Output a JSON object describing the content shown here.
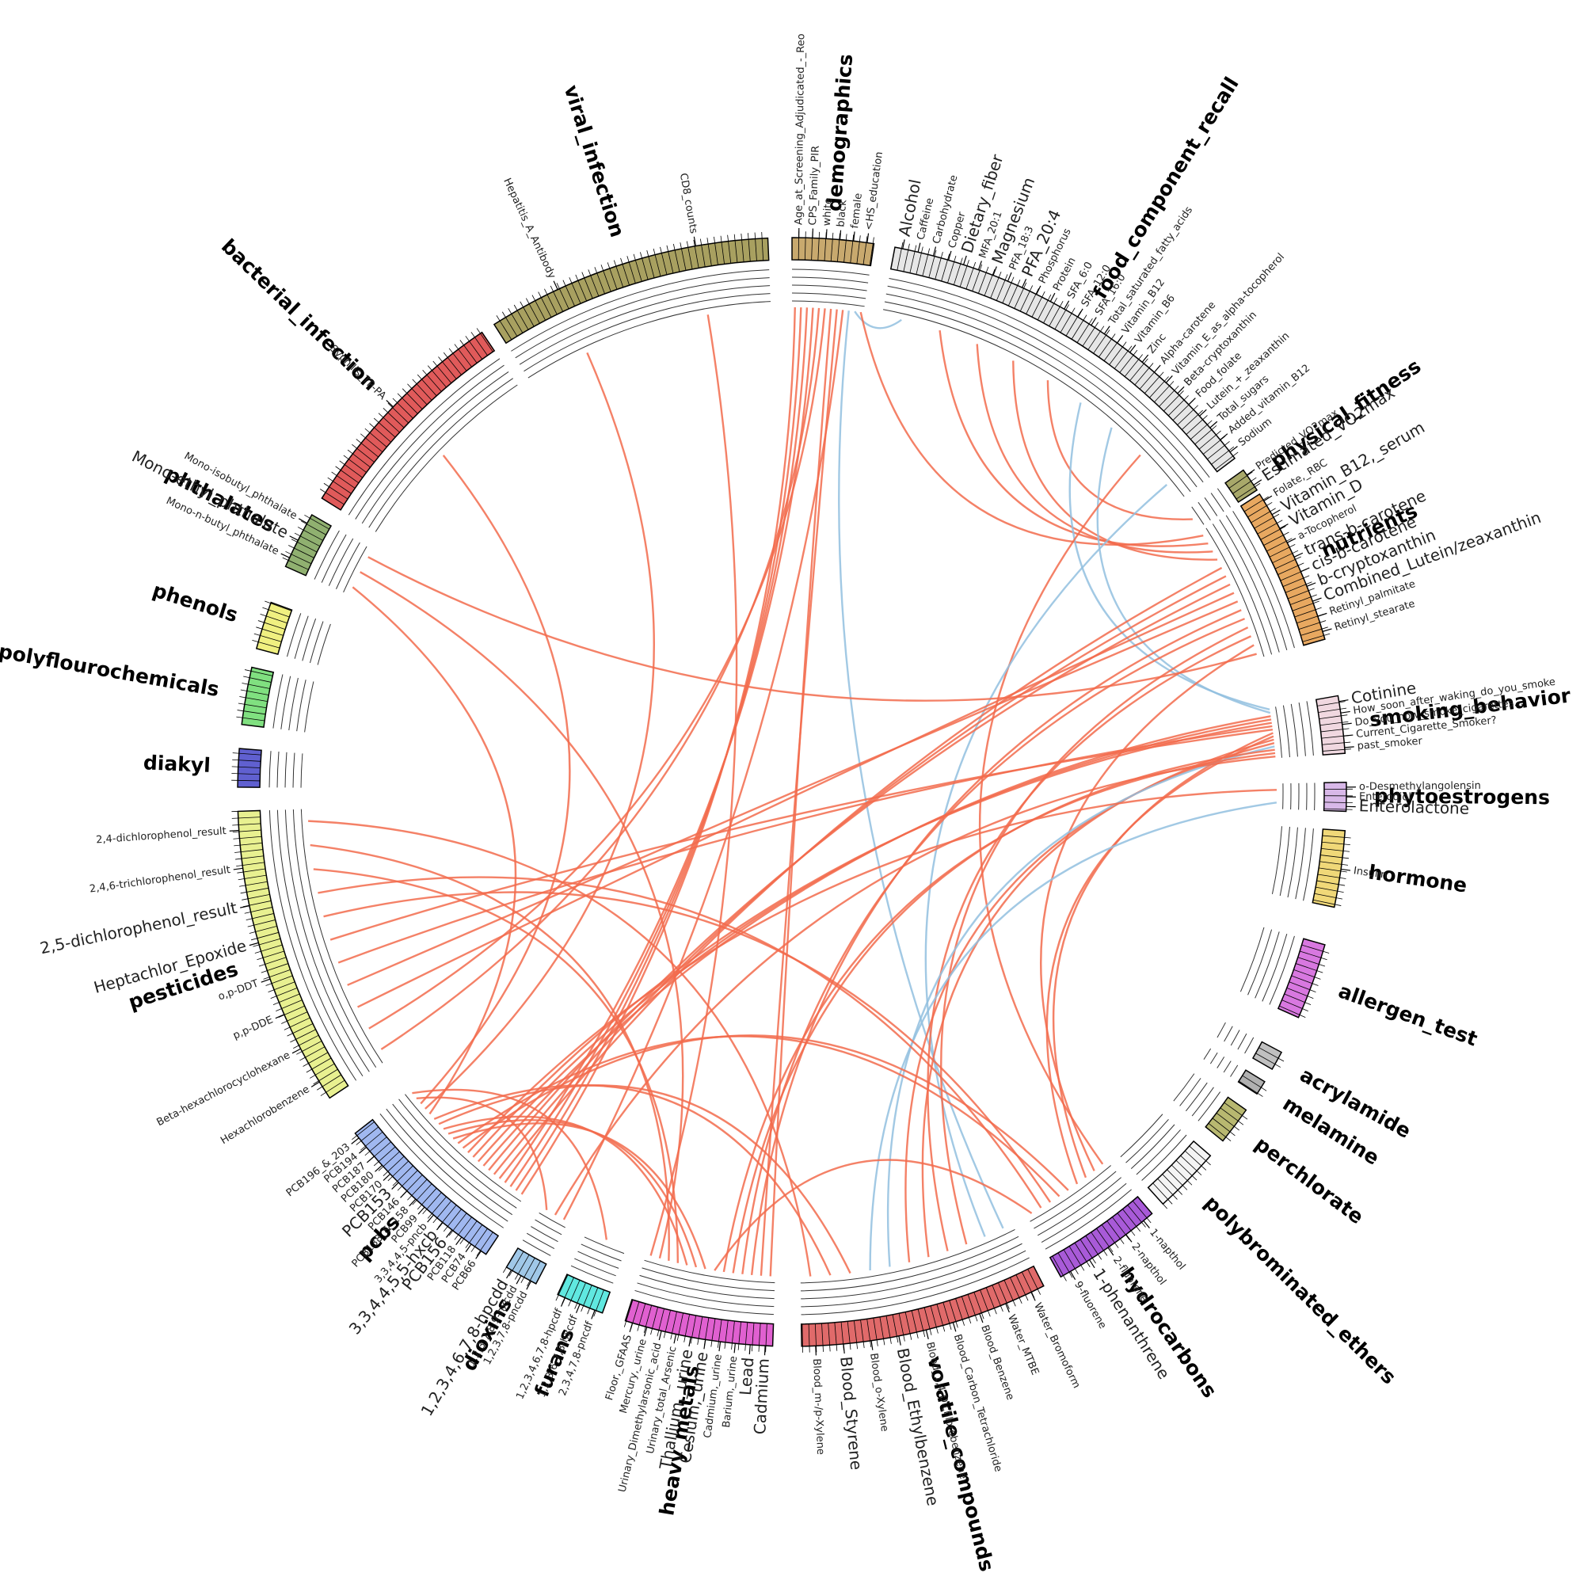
{
  "chart_data": {
    "type": "chord",
    "sectors": [
      {
        "name": "demographics",
        "color": "#c8a96e",
        "variables": [
          {
            "label": "Age_at_Screening_Adjudicated_-_Reo"
          },
          {
            "label": "CPS_Family_PIR"
          },
          {
            "label": "white"
          },
          {
            "label": "black"
          },
          {
            "label": "female"
          },
          {
            "label": "<HS_education"
          }
        ]
      },
      {
        "name": "food_component_recall",
        "color": "#e6e6e6",
        "variables": [
          {
            "label": "Alcohol",
            "color": "#6baed6"
          },
          {
            "label": "Caffeine"
          },
          {
            "label": "Carbohydrate"
          },
          {
            "label": "Copper"
          },
          {
            "label": "Dietary_fiber",
            "color": "#6baed6"
          },
          {
            "label": "MFA_20:1"
          },
          {
            "label": "Magnesium",
            "color": "#6baed6"
          },
          {
            "label": "PFA_18:3"
          },
          {
            "label": "PFA_20:4",
            "color": "#f26b4c"
          },
          {
            "label": "Phosphorus"
          },
          {
            "label": "Protein"
          },
          {
            "label": "SFA_6:0"
          },
          {
            "label": "SFA_12:0"
          },
          {
            "label": "SFA_16:0"
          },
          {
            "label": "Total_saturated_fatty_acids"
          },
          {
            "label": "Vitamin_B12"
          },
          {
            "label": "Vitamin_B6"
          },
          {
            "label": "Zinc"
          },
          {
            "label": "Alpha-carotene"
          },
          {
            "label": "Vitamin_E_as_alpha-tocopherol"
          },
          {
            "label": "Beta-cryptoxanthin"
          },
          {
            "label": "Food_folate"
          },
          {
            "label": "Lutein_+_zeaxanthin"
          },
          {
            "label": "Total_sugars"
          },
          {
            "label": "Added_vitamin_B12"
          },
          {
            "label": "Sodium"
          }
        ]
      },
      {
        "name": "physical_fitness",
        "color": "#a8a86a",
        "variables": [
          {
            "label": "Predicted_VO2max"
          },
          {
            "label": "Estimated_VO2max",
            "color": "#6baed6"
          }
        ]
      },
      {
        "name": "nutrients",
        "color": "#e8a860",
        "variables": [
          {
            "label": "Folate,_RBC"
          },
          {
            "label": "Vitamin_B12,_serum",
            "color": "#6baed6"
          },
          {
            "label": "Vitamin_D",
            "color": "#6baed6"
          },
          {
            "label": "a-Tocopherol"
          },
          {
            "label": "trans-b-carotene",
            "color": "#6baed6"
          },
          {
            "label": "cis-b-carotene",
            "color": "#6baed6"
          },
          {
            "label": "b-cryptoxanthin",
            "color": "#6baed6"
          },
          {
            "label": "Combined_Lutein/zeaxanthin",
            "color": "#6baed6"
          },
          {
            "label": "Retinyl_palmitate"
          },
          {
            "label": "Retinyl_stearate"
          }
        ]
      },
      {
        "name": "smoking_behavior",
        "color": "#f0d8e0",
        "variables": [
          {
            "label": "Cotinine",
            "color": "#6baed6"
          },
          {
            "label": "How_soon_after_waking_do_you_smoke"
          },
          {
            "label": "Do_you_now_smoke_cigarettes..."
          },
          {
            "label": "Current_Cigarette_Smoker?"
          },
          {
            "label": "past_smoker"
          }
        ]
      },
      {
        "name": "phytoestrogens",
        "color": "#d8b8e8",
        "variables": [
          {
            "label": "o-Desmethylangolensin"
          },
          {
            "label": "Enterodiol"
          },
          {
            "label": "Enterolactone",
            "color": "#6baed6"
          }
        ]
      },
      {
        "name": "hormone",
        "color": "#f0d878",
        "variables": [
          {
            "label": "Insulin"
          }
        ]
      },
      {
        "name": "allergen_test",
        "color": "#d878e0",
        "variables": []
      },
      {
        "name": "acrylamide",
        "color": "#c0c0c0",
        "variables": []
      },
      {
        "name": "melamine",
        "color": "#b0b0b0",
        "variables": []
      },
      {
        "name": "perchlorate",
        "color": "#b8b870",
        "variables": []
      },
      {
        "name": "polybrominated_ethers",
        "color": "#f4f4f4",
        "variables": []
      },
      {
        "name": "hydrocarbons",
        "color": "#a85ad8",
        "variables": [
          {
            "label": "1-napthol"
          },
          {
            "label": "2-napthol"
          },
          {
            "label": "2-fluorene"
          },
          {
            "label": "1-phenanthrene",
            "color": "#f26b4c"
          },
          {
            "label": "9-fluorene"
          }
        ]
      },
      {
        "name": "volatile_compounds",
        "color": "#e06a6a",
        "variables": [
          {
            "label": "Water_Bromoform"
          },
          {
            "label": "Water_MTBE"
          },
          {
            "label": "Blood_Benzene"
          },
          {
            "label": "Blood_Carbon_Tetrachloride"
          },
          {
            "label": "Blood_1,4-Dichlorobenzene"
          },
          {
            "label": "Blood_Ethylbenzene",
            "color": "#6baed6"
          },
          {
            "label": "Blood_o-Xylene"
          },
          {
            "label": "Blood_Styrene",
            "color": "#6baed6"
          },
          {
            "label": "Blood_m-/p-Xylene"
          }
        ]
      },
      {
        "name": "heavy_metals",
        "color": "#e060d0",
        "variables": [
          {
            "label": "Cadmium",
            "color": "#6baed6"
          },
          {
            "label": "Lead",
            "color": "#6baed6"
          },
          {
            "label": "Barium,_urine"
          },
          {
            "label": "Cadmium,_urine"
          },
          {
            "label": "Cesium,_urine",
            "color": "#f26b4c"
          },
          {
            "label": "Thallium,_urine",
            "color": "#f26b4c"
          },
          {
            "label": "Urinary_total_Arsenic"
          },
          {
            "label": "Urinary_Dimethylarsonic_acid"
          },
          {
            "label": "Mercury,_urine"
          },
          {
            "label": "Floor,_GFAAS"
          }
        ]
      },
      {
        "name": "furans",
        "color": "#60e8e0",
        "variables": [
          {
            "label": "2,3,4,7,8-pncdf"
          },
          {
            "label": "1,2,3,6,7,8-hxcdf"
          },
          {
            "label": "1,2,3,4,6,7,8-hpcdf"
          }
        ]
      },
      {
        "name": "dioxins",
        "color": "#a0c8e8",
        "variables": [
          {
            "label": "1,2,3,7,8-pncdd"
          },
          {
            "label": "1,2,3,7,8,9-hxcdd"
          },
          {
            "label": "1,2,3,4,6,7,8-hpcdd",
            "color": "#f26b4c"
          }
        ]
      },
      {
        "name": "pcbs",
        "color": "#a0b8f0",
        "variables": [
          {
            "label": "PCB66"
          },
          {
            "label": "PCB74"
          },
          {
            "label": "PCB118"
          },
          {
            "label": "PCB156",
            "color": "#6baed6"
          },
          {
            "label": "3,3,4,4,5,5-hxcb",
            "color": "#6baed6"
          },
          {
            "label": "3,3,4,4,5-pncb"
          },
          {
            "label": "PCB99"
          },
          {
            "label": "PCB138_&_158"
          },
          {
            "label": "PCB146"
          },
          {
            "label": "PCB153",
            "color": "#6baed6"
          },
          {
            "label": "PCB170"
          },
          {
            "label": "PCB180"
          },
          {
            "label": "PCB187"
          },
          {
            "label": "PCB194"
          },
          {
            "label": "PCB196_&_203"
          }
        ]
      },
      {
        "name": "pesticides",
        "color": "#e8f090",
        "variables": [
          {
            "label": "Hexachlorobenzene"
          },
          {
            "label": "Beta-hexachlorocyclohexane"
          },
          {
            "label": "p,p-DDE"
          },
          {
            "label": "o,p-DDT"
          },
          {
            "label": "Heptachlor_Epoxide",
            "color": "#f26b4c"
          },
          {
            "label": "2,5-dichlorophenol_result",
            "color": "#f26b4c"
          },
          {
            "label": "2,4,6-trichlorophenol_result"
          },
          {
            "label": "2,4-dichlorophenol_result"
          }
        ]
      },
      {
        "name": "diakyl",
        "color": "#6060d0",
        "variables": []
      },
      {
        "name": "polyflourochemicals",
        "color": "#80e080",
        "variables": []
      },
      {
        "name": "phenols",
        "color": "#f0f080",
        "variables": []
      },
      {
        "name": "phthalates",
        "color": "#90b070",
        "variables": [
          {
            "label": "Mono-n-butyl_phthalate"
          },
          {
            "label": "Mono-ethyl_phthalate",
            "color": "#f26b4c"
          },
          {
            "label": "Mono-isobutyl_phthalate"
          }
        ]
      },
      {
        "name": "bacterial_infection",
        "color": "#e05a5a",
        "variables": [
          {
            "label": "Syphilis_TP-PA"
          }
        ]
      },
      {
        "name": "viral_infection",
        "color": "#a8a060",
        "variables": [
          {
            "label": "Hepatitis_A_Antibody"
          },
          {
            "label": "CD8_counts"
          }
        ]
      }
    ],
    "links": [
      {
        "from": "demographics",
        "to": "pcbs",
        "color": "#f26b4c"
      },
      {
        "from": "demographics",
        "to": "pcbs",
        "color": "#f26b4c"
      },
      {
        "from": "demographics",
        "to": "pcbs",
        "color": "#f26b4c"
      },
      {
        "from": "demographics",
        "to": "pcbs",
        "color": "#f26b4c"
      },
      {
        "from": "demographics",
        "to": "pesticides",
        "color": "#f26b4c"
      },
      {
        "from": "demographics",
        "to": "pesticides",
        "color": "#f26b4c"
      },
      {
        "from": "demographics",
        "to": "heavy_metals",
        "color": "#f26b4c"
      },
      {
        "from": "demographics",
        "to": "heavy_metals",
        "color": "#f26b4c"
      },
      {
        "from": "demographics",
        "to": "dioxins",
        "color": "#f26b4c"
      },
      {
        "from": "demographics",
        "to": "volatile_compounds",
        "color": "#92c0df"
      },
      {
        "from": "demographics",
        "to": "food_component_recall",
        "color": "#92c0df"
      },
      {
        "from": "demographics",
        "to": "nutrients",
        "color": "#f26b4c"
      },
      {
        "from": "food_component_recall",
        "to": "nutrients",
        "color": "#f26b4c"
      },
      {
        "from": "food_component_recall",
        "to": "nutrients",
        "color": "#f26b4c"
      },
      {
        "from": "food_component_recall",
        "to": "nutrients",
        "color": "#f26b4c"
      },
      {
        "from": "food_component_recall",
        "to": "physical_fitness",
        "color": "#f26b4c"
      },
      {
        "from": "food_component_recall",
        "to": "smoking_behavior",
        "color": "#92c0df"
      },
      {
        "from": "food_component_recall",
        "to": "smoking_behavior",
        "color": "#92c0df"
      },
      {
        "from": "food_component_recall",
        "to": "hydrocarbons",
        "color": "#f26b4c"
      },
      {
        "from": "food_component_recall",
        "to": "volatile_compounds",
        "color": "#92c0df"
      },
      {
        "from": "nutrients",
        "to": "pcbs",
        "color": "#f26b4c"
      },
      {
        "from": "nutrients",
        "to": "pcbs",
        "color": "#f26b4c"
      },
      {
        "from": "nutrients",
        "to": "pcbs",
        "color": "#f26b4c"
      },
      {
        "from": "nutrients",
        "to": "pesticides",
        "color": "#f26b4c"
      },
      {
        "from": "nutrients",
        "to": "pesticides",
        "color": "#f26b4c"
      },
      {
        "from": "nutrients",
        "to": "heavy_metals",
        "color": "#f26b4c"
      },
      {
        "from": "nutrients",
        "to": "heavy_metals",
        "color": "#f26b4c"
      },
      {
        "from": "nutrients",
        "to": "volatile_compounds",
        "color": "#f26b4c"
      },
      {
        "from": "nutrients",
        "to": "volatile_compounds",
        "color": "#f26b4c"
      },
      {
        "from": "nutrients",
        "to": "hydrocarbons",
        "color": "#f26b4c"
      },
      {
        "from": "smoking_behavior",
        "to": "pcbs",
        "color": "#f26b4c"
      },
      {
        "from": "smoking_behavior",
        "to": "pcbs",
        "color": "#f26b4c"
      },
      {
        "from": "smoking_behavior",
        "to": "pcbs",
        "color": "#f26b4c"
      },
      {
        "from": "smoking_behavior",
        "to": "pesticides",
        "color": "#f26b4c"
      },
      {
        "from": "smoking_behavior",
        "to": "pesticides",
        "color": "#f26b4c"
      },
      {
        "from": "smoking_behavior",
        "to": "hydrocarbons",
        "color": "#f26b4c"
      },
      {
        "from": "smoking_behavior",
        "to": "hydrocarbons",
        "color": "#f26b4c"
      },
      {
        "from": "smoking_behavior",
        "to": "volatile_compounds",
        "color": "#f26b4c"
      },
      {
        "from": "smoking_behavior",
        "to": "volatile_compounds",
        "color": "#f26b4c"
      },
      {
        "from": "smoking_behavior",
        "to": "volatile_compounds",
        "color": "#92c0df"
      },
      {
        "from": "smoking_behavior",
        "to": "heavy_metals",
        "color": "#f26b4c"
      },
      {
        "from": "smoking_behavior",
        "to": "heavy_metals",
        "color": "#f26b4c"
      },
      {
        "from": "smoking_behavior",
        "to": "dioxins",
        "color": "#f26b4c"
      },
      {
        "from": "phytoestrogens",
        "to": "pcbs",
        "color": "#f26b4c"
      },
      {
        "from": "phytoestrogens",
        "to": "volatile_compounds",
        "color": "#92c0df"
      },
      {
        "from": "hydrocarbons",
        "to": "pcbs",
        "color": "#f26b4c"
      },
      {
        "from": "hydrocarbons",
        "to": "pcbs",
        "color": "#f26b4c"
      },
      {
        "from": "hydrocarbons",
        "to": "pesticides",
        "color": "#f26b4c"
      },
      {
        "from": "hydrocarbons",
        "to": "pesticides",
        "color": "#f26b4c"
      },
      {
        "from": "hydrocarbons",
        "to": "heavy_metals",
        "color": "#f26b4c"
      },
      {
        "from": "heavy_metals",
        "to": "pcbs",
        "color": "#f26b4c"
      },
      {
        "from": "heavy_metals",
        "to": "pcbs",
        "color": "#f26b4c"
      },
      {
        "from": "heavy_metals",
        "to": "pcbs",
        "color": "#f26b4c"
      },
      {
        "from": "heavy_metals",
        "to": "pesticides",
        "color": "#f26b4c"
      },
      {
        "from": "heavy_metals",
        "to": "pesticides",
        "color": "#f26b4c"
      },
      {
        "from": "volatile_compounds",
        "to": "pcbs",
        "color": "#f26b4c"
      },
      {
        "from": "volatile_compounds",
        "to": "pcbs",
        "color": "#f26b4c"
      },
      {
        "from": "volatile_compounds",
        "to": "pesticides",
        "color": "#f26b4c"
      },
      {
        "from": "phthalates",
        "to": "pcbs",
        "color": "#f26b4c"
      },
      {
        "from": "phthalates",
        "to": "heavy_metals",
        "color": "#f26b4c"
      },
      {
        "from": "phthalates",
        "to": "nutrients",
        "color": "#f26b4c"
      },
      {
        "from": "viral_infection",
        "to": "pcbs",
        "color": "#f26b4c"
      },
      {
        "from": "viral_infection",
        "to": "heavy_metals",
        "color": "#f26b4c"
      },
      {
        "from": "bacterial_infection",
        "to": "pcbs",
        "color": "#f26b4c"
      },
      {
        "from": "dioxins",
        "to": "pcbs",
        "color": "#f26b4c"
      },
      {
        "from": "furans",
        "to": "pcbs",
        "color": "#f26b4c"
      }
    ]
  }
}
